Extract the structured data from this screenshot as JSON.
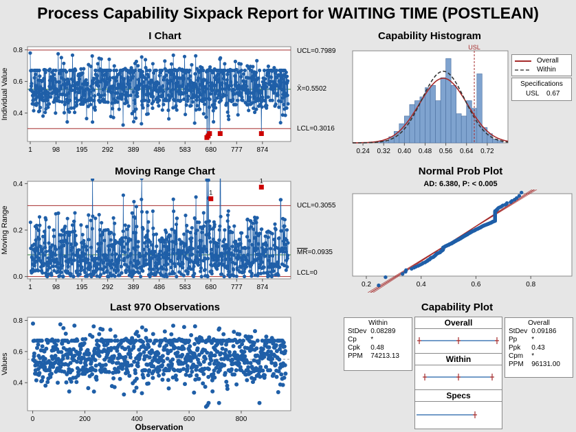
{
  "title": "Process Capability Sixpack Report for WAITING TIME (POSTLEAN)",
  "colors": {
    "data": "#1f5fa8",
    "limit": "#a52a2a",
    "bar": "#7fa3cf",
    "fail": "#cc0000",
    "plot_bg": "#ffffff",
    "page_bg": "#e6e6e6"
  },
  "i_chart": {
    "title": "I Chart",
    "ylabel": "Individual Value",
    "ucl_label": "UCL=0.7989",
    "center_prefix": "X̄",
    "center_label": "=0.5502",
    "lcl_label": "LCL=0.3016",
    "ucl": 0.7989,
    "center": 0.5502,
    "lcl": 0.3016,
    "yticks": [
      "0.4",
      "0.6",
      "0.8"
    ],
    "xticks": [
      "1",
      "98",
      "195",
      "292",
      "389",
      "486",
      "583",
      "680",
      "777",
      "874"
    ]
  },
  "mr_chart": {
    "title": "Moving Range Chart",
    "ylabel": "Moving Range",
    "ucl_label": "UCL=0.3055",
    "center_prefix": "MR",
    "center_label": "=0.0935",
    "lcl_label": "LCL=0",
    "ucl": 0.3055,
    "center": 0.0935,
    "lcl": 0,
    "yticks": [
      "0.0",
      "0.2",
      "0.4"
    ],
    "xticks": [
      "1",
      "98",
      "195",
      "292",
      "389",
      "486",
      "583",
      "680",
      "777",
      "874"
    ],
    "test_marker": "1"
  },
  "last_obs": {
    "title": "Last 970 Observations",
    "ylabel": "Values",
    "xlabel": "Observation",
    "yticks": [
      "0.4",
      "0.6",
      "0.8"
    ],
    "xticks": [
      "0",
      "200",
      "400",
      "600",
      "800"
    ]
  },
  "histogram": {
    "title": "Capability Histogram",
    "usl_tag": "USL",
    "xticks": [
      "0.24",
      "0.32",
      "0.40",
      "0.48",
      "0.56",
      "0.64",
      "0.72"
    ],
    "legend": {
      "overall": "Overall",
      "within": "Within"
    },
    "spec_title": "Specifications",
    "spec_label": "USL",
    "spec_value": "0.67"
  },
  "prob_plot": {
    "title": "Normal Prob Plot",
    "subtitle": "AD: 6.380, P: < 0.005",
    "xticks": [
      "0.2",
      "0.4",
      "0.6",
      "0.8"
    ]
  },
  "capability_plot": {
    "title": "Capability Plot",
    "within_box": {
      "title": "Within",
      "rows": [
        [
          "StDev",
          "0.08289"
        ],
        [
          "Cp",
          "*"
        ],
        [
          "Cpk",
          "0.48"
        ],
        [
          "PPM",
          "74213.13"
        ]
      ]
    },
    "overall_box": {
      "title": "Overall",
      "rows": [
        [
          "StDev",
          "0.09186"
        ],
        [
          "Pp",
          "*"
        ],
        [
          "Ppk",
          "0.43"
        ],
        [
          "Cpm",
          "*"
        ],
        [
          "PPM",
          "96131.00"
        ]
      ]
    },
    "panels": [
      "Overall",
      "Within",
      "Specs"
    ]
  },
  "chart_data": [
    {
      "type": "line",
      "title": "I Chart",
      "ylabel": "Individual Value",
      "n": 970,
      "ylim": [
        0.22,
        0.82
      ],
      "ucl": 0.7989,
      "center": 0.5502,
      "lcl": 0.3016,
      "out_of_control": [
        {
          "x": 665,
          "y": 0.245
        },
        {
          "x": 670,
          "y": 0.255
        },
        {
          "x": 675,
          "y": 0.27
        },
        {
          "x": 715,
          "y": 0.27
        },
        {
          "x": 870,
          "y": 0.27
        }
      ]
    },
    {
      "type": "line",
      "title": "Moving Range Chart",
      "ylabel": "Moving Range",
      "n": 970,
      "ylim": [
        -0.01,
        0.41
      ],
      "ucl": 0.3055,
      "center": 0.0935,
      "lcl": 0,
      "out_of_control": [
        {
          "x": 680,
          "y": 0.335
        },
        {
          "x": 870,
          "y": 0.385
        }
      ]
    },
    {
      "type": "scatter",
      "title": "Last 970 Observations",
      "xlabel": "Observation",
      "ylabel": "Values",
      "xlim": [
        -20,
        990
      ],
      "ylim": [
        0.22,
        0.82
      ]
    },
    {
      "type": "bar",
      "title": "Capability Histogram",
      "xlim": [
        0.2,
        0.8
      ],
      "usl": 0.67,
      "bins": [
        0.2,
        0.22,
        0.24,
        0.26,
        0.28,
        0.3,
        0.32,
        0.34,
        0.36,
        0.38,
        0.4,
        0.42,
        0.44,
        0.46,
        0.48,
        0.5,
        0.52,
        0.54,
        0.56,
        0.58,
        0.6,
        0.62,
        0.64,
        0.66,
        0.68,
        0.7,
        0.72,
        0.74,
        0.76,
        0.78
      ],
      "values": [
        0,
        0,
        0,
        0,
        0,
        2,
        3,
        8,
        15,
        25,
        35,
        50,
        55,
        60,
        72,
        75,
        55,
        85,
        110,
        75,
        38,
        35,
        55,
        45,
        90,
        20,
        12,
        5,
        3,
        0
      ],
      "overall": {
        "mean": 0.5502,
        "stdev": 0.09186
      },
      "within": {
        "mean": 0.5502,
        "stdev": 0.08289
      }
    },
    {
      "type": "scatter",
      "title": "Normal Prob Plot",
      "subtitle": "AD: 6.380, P: < 0.005",
      "xlim": [
        0.15,
        0.95
      ]
    }
  ]
}
